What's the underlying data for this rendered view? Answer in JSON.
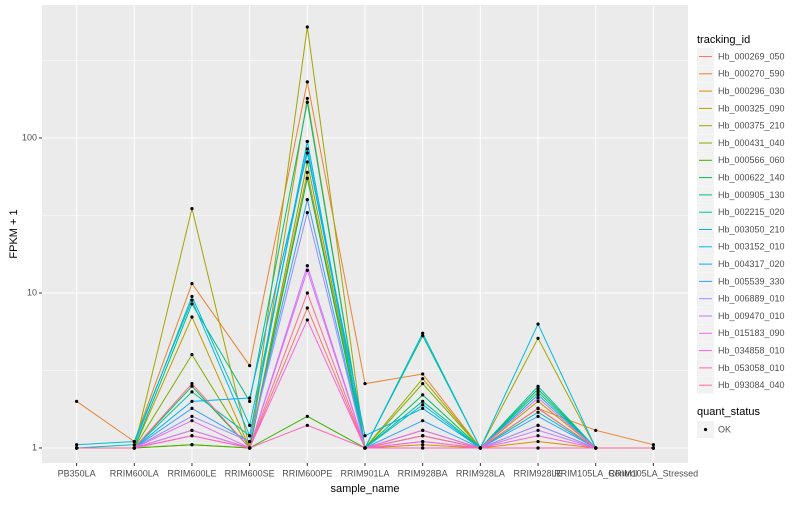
{
  "chart_data": {
    "type": "line",
    "y_label": "FPKM + 1",
    "x_label": "sample_name",
    "legend_title": "tracking_id",
    "legend2_title": "quant_status",
    "legend2_entries": [
      "OK"
    ],
    "log_scale": true,
    "grid": true,
    "point_color": "#000000",
    "categories": [
      "PB350LA",
      "RRIM600LA",
      "RRIM600LE",
      "RRIM600SE",
      "RRIM600PE",
      "RRIM901LA",
      "RRIM928BA",
      "RRIM928LA",
      "RRIM928LE",
      "RRIM105LA_Control",
      "RRIM105LA_Stressed"
    ],
    "ylim": [
      0.8,
      721
    ],
    "yticks": [
      1,
      10,
      100
    ],
    "series": [
      {
        "name": "Hb_000269_050",
        "color": "#F8766D",
        "values": [
          1,
          1,
          1.3,
          1,
          8,
          1,
          1.2,
          1,
          1.4,
          1,
          1
        ]
      },
      {
        "name": "Hb_000270_590",
        "color": "#EA8331",
        "values": [
          2.0,
          1.1,
          11.5,
          3.4,
          230,
          2.6,
          3.0,
          1,
          1.8,
          1.3,
          1.05
        ]
      },
      {
        "name": "Hb_000296_030",
        "color": "#D89000",
        "values": [
          1,
          1,
          1.05,
          1,
          60,
          1,
          1.05,
          1,
          1.1,
          1,
          1
        ]
      },
      {
        "name": "Hb_000325_090",
        "color": "#C09B00",
        "values": [
          1,
          1,
          7,
          1,
          180,
          1,
          1.3,
          1,
          2.0,
          1,
          1
        ]
      },
      {
        "name": "Hb_000375_210",
        "color": "#A3A500",
        "values": [
          1,
          1,
          35,
          1,
          520,
          1,
          2.8,
          1,
          5.1,
          1,
          1
        ]
      },
      {
        "name": "Hb_000431_040",
        "color": "#7CAE00",
        "values": [
          1,
          1,
          4.0,
          1,
          70,
          1,
          2.6,
          1,
          1.8,
          1,
          1
        ]
      },
      {
        "name": "Hb_000566_060",
        "color": "#39B600",
        "values": [
          1,
          1,
          1.05,
          1,
          1.6,
          1,
          1,
          1,
          1,
          1,
          1
        ]
      },
      {
        "name": "Hb_000622_140",
        "color": "#00BB4E",
        "values": [
          1,
          1,
          2.5,
          1,
          55,
          1,
          2.2,
          1,
          2.4,
          1,
          1
        ]
      },
      {
        "name": "Hb_000905_130",
        "color": "#00BF7D",
        "values": [
          1,
          1,
          8.5,
          2.0,
          170,
          1,
          5.3,
          1,
          2.3,
          1,
          1
        ]
      },
      {
        "name": "Hb_002215_020",
        "color": "#00C1A3",
        "values": [
          1,
          1,
          2.3,
          1.2,
          95,
          1,
          2.0,
          1,
          2.5,
          1,
          1
        ]
      },
      {
        "name": "Hb_003050_210",
        "color": "#00BFC4",
        "values": [
          1,
          1.05,
          9.5,
          1.4,
          85,
          1,
          1.9,
          1,
          1.7,
          1,
          1
        ]
      },
      {
        "name": "Hb_003152_010",
        "color": "#00BAE0",
        "values": [
          1.05,
          1.1,
          9,
          1.2,
          95,
          1,
          5.5,
          1,
          6.3,
          1,
          1
        ]
      },
      {
        "name": "Hb_004317_020",
        "color": "#00B0F6",
        "values": [
          1,
          1,
          2.0,
          2.1,
          80,
          1.2,
          1.8,
          1,
          2.2,
          1,
          1
        ]
      },
      {
        "name": "Hb_005539_330",
        "color": "#35A2FF",
        "values": [
          1,
          1,
          1.8,
          1.1,
          40,
          1,
          1.5,
          1,
          1.6,
          1,
          1
        ]
      },
      {
        "name": "Hb_006889_010",
        "color": "#9590FF",
        "values": [
          1,
          1,
          1.6,
          1.1,
          33,
          1,
          1.2,
          1,
          1.4,
          1,
          1
        ]
      },
      {
        "name": "Hb_009470_010",
        "color": "#C77CFF",
        "values": [
          1,
          1,
          1.3,
          1,
          15,
          1,
          1.1,
          1,
          1.3,
          1,
          1
        ]
      },
      {
        "name": "Hb_015183_090",
        "color": "#E76BF3",
        "values": [
          1,
          1,
          1.5,
          1,
          14,
          1,
          1.3,
          1,
          2.1,
          1,
          1
        ]
      },
      {
        "name": "Hb_034858_010",
        "color": "#FA62DB",
        "values": [
          1,
          1,
          1.2,
          1,
          6.7,
          1,
          1.1,
          1,
          1.2,
          1,
          1
        ]
      },
      {
        "name": "Hb_053058_010",
        "color": "#FF62BC",
        "values": [
          1,
          1,
          1.2,
          1,
          1.4,
          1,
          1,
          1,
          1,
          1,
          1
        ]
      },
      {
        "name": "Hb_093084_040",
        "color": "#FF6C91",
        "values": [
          1,
          1,
          2.6,
          1,
          10,
          1,
          1.2,
          1,
          1.8,
          1,
          1
        ]
      }
    ]
  }
}
